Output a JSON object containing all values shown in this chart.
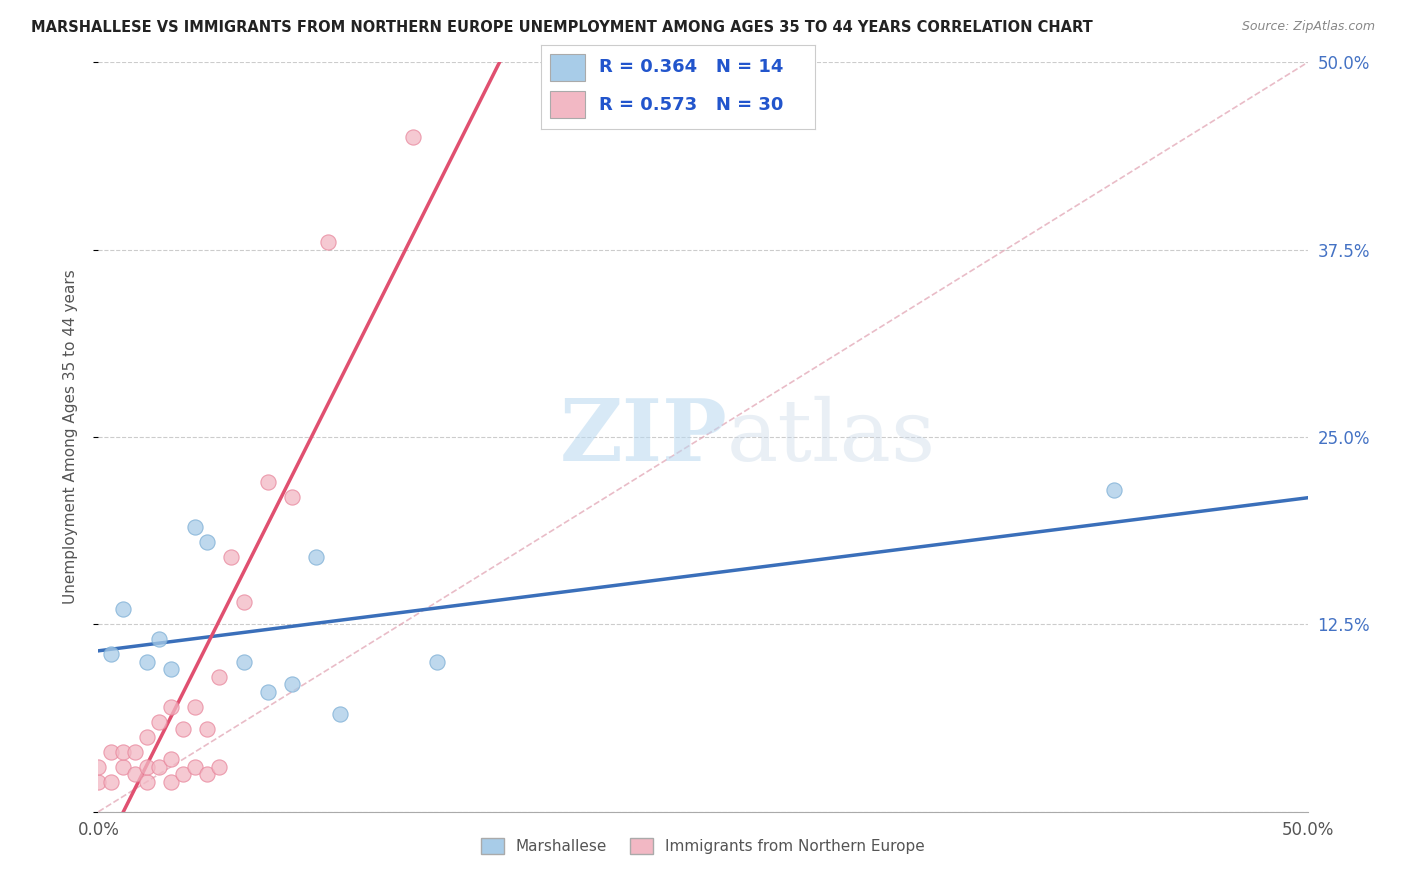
{
  "title": "MARSHALLESE VS IMMIGRANTS FROM NORTHERN EUROPE UNEMPLOYMENT AMONG AGES 35 TO 44 YEARS CORRELATION CHART",
  "source": "Source: ZipAtlas.com",
  "ylabel": "Unemployment Among Ages 35 to 44 years",
  "xlim": [
    0.0,
    0.5
  ],
  "ylim": [
    0.0,
    0.5
  ],
  "xticks": [
    0.0,
    0.125,
    0.25,
    0.375,
    0.5
  ],
  "xticklabels": [
    "0.0%",
    "",
    "",
    "",
    "50.0%"
  ],
  "yticks_right": [
    0.0,
    0.125,
    0.25,
    0.375,
    0.5
  ],
  "yticklabels_right": [
    "",
    "12.5%",
    "25.0%",
    "37.5%",
    "50.0%"
  ],
  "series": [
    {
      "name": "Marshallese",
      "R": 0.364,
      "N": 14,
      "color": "#a8cce8",
      "edge_color": "#7badd4",
      "line_color": "#3a6fba",
      "line_style": "solid",
      "x": [
        0.005,
        0.01,
        0.02,
        0.025,
        0.03,
        0.04,
        0.045,
        0.06,
        0.07,
        0.08,
        0.09,
        0.1,
        0.14,
        0.42
      ],
      "y": [
        0.105,
        0.135,
        0.1,
        0.115,
        0.095,
        0.19,
        0.18,
        0.1,
        0.08,
        0.085,
        0.17,
        0.065,
        0.1,
        0.215
      ]
    },
    {
      "name": "Immigrants from Northern Europe",
      "R": 0.573,
      "N": 30,
      "color": "#f2b8c4",
      "edge_color": "#e8849a",
      "line_color": "#e05070",
      "line_style": "solid",
      "x": [
        0.0,
        0.0,
        0.005,
        0.005,
        0.01,
        0.01,
        0.015,
        0.015,
        0.02,
        0.02,
        0.02,
        0.025,
        0.025,
        0.03,
        0.03,
        0.03,
        0.035,
        0.035,
        0.04,
        0.04,
        0.045,
        0.045,
        0.05,
        0.05,
        0.055,
        0.06,
        0.07,
        0.08,
        0.095,
        0.13
      ],
      "y": [
        0.02,
        0.03,
        0.02,
        0.04,
        0.03,
        0.04,
        0.025,
        0.04,
        0.02,
        0.03,
        0.05,
        0.03,
        0.06,
        0.02,
        0.035,
        0.07,
        0.025,
        0.055,
        0.03,
        0.07,
        0.025,
        0.055,
        0.03,
        0.09,
        0.17,
        0.14,
        0.22,
        0.21,
        0.38,
        0.45
      ]
    }
  ],
  "ref_line": true,
  "watermark_zip": "ZIP",
  "watermark_atlas": "atlas",
  "legend_loc": "upper center",
  "background_color": "#ffffff",
  "grid_color": "#cccccc"
}
